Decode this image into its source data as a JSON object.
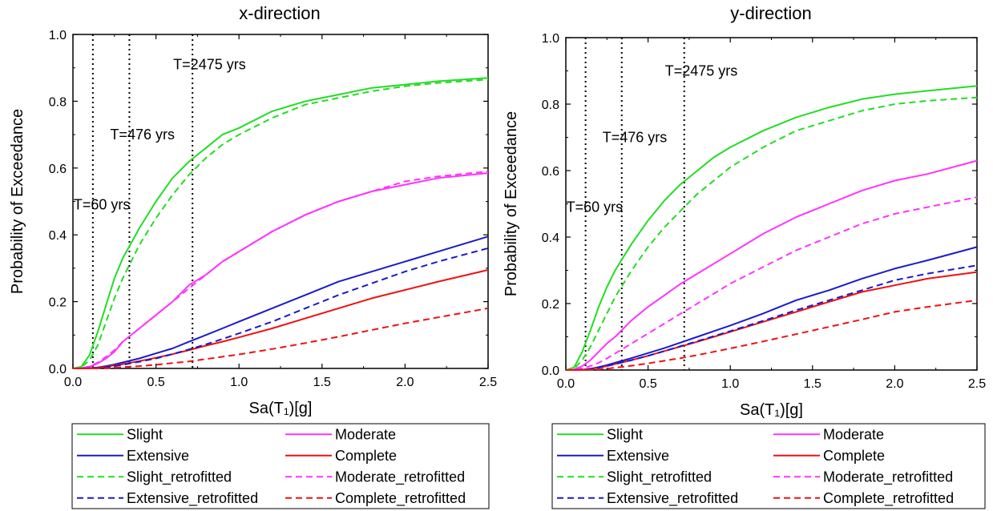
{
  "chart_data": [
    {
      "type": "line",
      "title": "x-direction",
      "xlabel": "Sa(T₁)[g]",
      "ylabel": "Probability of Exceedance",
      "xlim": [
        0,
        2.5
      ],
      "ylim": [
        0,
        1.0
      ],
      "xticks": [
        "0.0",
        "0.5",
        "1.0",
        "1.5",
        "2.0",
        "2.5"
      ],
      "yticks": [
        "0.0",
        "0.2",
        "0.4",
        "0.6",
        "0.8",
        "1.0"
      ],
      "x": [
        0,
        0.05,
        0.1,
        0.15,
        0.2,
        0.25,
        0.3,
        0.4,
        0.5,
        0.6,
        0.7,
        0.8,
        0.9,
        1.0,
        1.2,
        1.4,
        1.6,
        1.8,
        2.0,
        2.2,
        2.5
      ],
      "annotations": [
        {
          "x": 0.12,
          "label": "T=60 yrs",
          "label_y": 0.49
        },
        {
          "x": 0.34,
          "label": "T=476 yrs",
          "label_y": 0.7
        },
        {
          "x": 0.72,
          "label": "T=2475 yrs",
          "label_y": 0.91
        }
      ],
      "series": [
        {
          "name": "Slight",
          "color": "#22dd22",
          "dash": false,
          "values": [
            0,
            0.005,
            0.04,
            0.11,
            0.19,
            0.27,
            0.33,
            0.42,
            0.5,
            0.57,
            0.62,
            0.66,
            0.7,
            0.72,
            0.77,
            0.8,
            0.82,
            0.84,
            0.85,
            0.86,
            0.87
          ]
        },
        {
          "name": "Moderate",
          "color": "#ff33ff",
          "dash": false,
          "values": [
            0,
            0.001,
            0.005,
            0.015,
            0.03,
            0.05,
            0.08,
            0.12,
            0.16,
            0.2,
            0.25,
            0.28,
            0.32,
            0.35,
            0.41,
            0.46,
            0.5,
            0.53,
            0.55,
            0.57,
            0.585
          ]
        },
        {
          "name": "Extensive",
          "color": "#1a1acc",
          "dash": false,
          "values": [
            0,
            0,
            0.001,
            0.003,
            0.007,
            0.012,
            0.018,
            0.03,
            0.045,
            0.06,
            0.08,
            0.1,
            0.12,
            0.14,
            0.18,
            0.22,
            0.26,
            0.29,
            0.32,
            0.35,
            0.395
          ]
        },
        {
          "name": "Complete",
          "color": "#ee1111",
          "dash": false,
          "values": [
            0,
            0,
            0.0005,
            0.002,
            0.005,
            0.009,
            0.013,
            0.022,
            0.032,
            0.043,
            0.055,
            0.068,
            0.08,
            0.093,
            0.12,
            0.15,
            0.18,
            0.21,
            0.235,
            0.26,
            0.295
          ]
        },
        {
          "name": "Slight_retrofitted",
          "color": "#22dd22",
          "dash": true,
          "values": [
            0,
            0.003,
            0.025,
            0.07,
            0.14,
            0.21,
            0.27,
            0.37,
            0.45,
            0.52,
            0.58,
            0.63,
            0.67,
            0.7,
            0.75,
            0.79,
            0.81,
            0.83,
            0.845,
            0.855,
            0.865
          ]
        },
        {
          "name": "Moderate_retrofitted",
          "color": "#ff33ff",
          "dash": true,
          "values": [
            0,
            0.001,
            0.006,
            0.018,
            0.035,
            0.055,
            0.08,
            0.12,
            0.16,
            0.2,
            0.24,
            0.28,
            0.32,
            0.35,
            0.41,
            0.46,
            0.5,
            0.53,
            0.56,
            0.575,
            0.59
          ]
        },
        {
          "name": "Extensive_retrofitted",
          "color": "#1a1acc",
          "dash": true,
          "values": [
            0,
            0,
            0.001,
            0.002,
            0.004,
            0.007,
            0.011,
            0.02,
            0.03,
            0.043,
            0.057,
            0.072,
            0.088,
            0.105,
            0.14,
            0.18,
            0.22,
            0.255,
            0.29,
            0.32,
            0.36
          ]
        },
        {
          "name": "Complete_retrofitted",
          "color": "#ee1111",
          "dash": true,
          "values": [
            0,
            0,
            0,
            0.0005,
            0.001,
            0.002,
            0.004,
            0.007,
            0.011,
            0.016,
            0.021,
            0.028,
            0.035,
            0.042,
            0.058,
            0.076,
            0.095,
            0.115,
            0.135,
            0.153,
            0.18
          ]
        }
      ],
      "legend": {
        "placement": "bottom",
        "columns": 2
      }
    },
    {
      "type": "line",
      "title": "y-direction",
      "xlabel": "Sa(T₁)[g]",
      "ylabel": "Probability of Exceedance",
      "xlim": [
        0,
        2.5
      ],
      "ylim": [
        0,
        1.0
      ],
      "xticks": [
        "0.0",
        "0.5",
        "1.0",
        "1.5",
        "2.0",
        "2.5"
      ],
      "yticks": [
        "0.0",
        "0.2",
        "0.4",
        "0.6",
        "0.8",
        "1.0"
      ],
      "x": [
        0,
        0.05,
        0.1,
        0.15,
        0.2,
        0.25,
        0.3,
        0.4,
        0.5,
        0.6,
        0.7,
        0.8,
        0.9,
        1.0,
        1.2,
        1.4,
        1.6,
        1.8,
        2.0,
        2.2,
        2.5
      ],
      "annotations": [
        {
          "x": 0.12,
          "label": "T=60 yrs",
          "label_y": 0.49
        },
        {
          "x": 0.34,
          "label": "T=476 yrs",
          "label_y": 0.7
        },
        {
          "x": 0.72,
          "label": "T=2475 yrs",
          "label_y": 0.9
        }
      ],
      "series": [
        {
          "name": "Slight",
          "color": "#22dd22",
          "dash": false,
          "values": [
            0,
            0.008,
            0.055,
            0.12,
            0.19,
            0.25,
            0.3,
            0.38,
            0.45,
            0.51,
            0.56,
            0.6,
            0.64,
            0.67,
            0.72,
            0.76,
            0.79,
            0.815,
            0.83,
            0.84,
            0.855
          ]
        },
        {
          "name": "Moderate",
          "color": "#ff33ff",
          "dash": false,
          "values": [
            0,
            0.002,
            0.012,
            0.03,
            0.055,
            0.08,
            0.1,
            0.15,
            0.19,
            0.225,
            0.26,
            0.29,
            0.32,
            0.35,
            0.41,
            0.46,
            0.5,
            0.54,
            0.57,
            0.59,
            0.63
          ]
        },
        {
          "name": "Extensive",
          "color": "#1a1acc",
          "dash": false,
          "values": [
            0,
            0,
            0.001,
            0.004,
            0.009,
            0.015,
            0.022,
            0.036,
            0.051,
            0.066,
            0.083,
            0.1,
            0.117,
            0.134,
            0.17,
            0.21,
            0.24,
            0.275,
            0.305,
            0.33,
            0.37
          ]
        },
        {
          "name": "Complete",
          "color": "#ee1111",
          "dash": false,
          "values": [
            0,
            0,
            0.001,
            0.003,
            0.007,
            0.012,
            0.018,
            0.03,
            0.043,
            0.057,
            0.071,
            0.085,
            0.1,
            0.115,
            0.145,
            0.175,
            0.205,
            0.235,
            0.255,
            0.275,
            0.295
          ]
        },
        {
          "name": "Slight_retrofitted",
          "color": "#22dd22",
          "dash": true,
          "values": [
            0,
            0.004,
            0.03,
            0.07,
            0.12,
            0.17,
            0.22,
            0.3,
            0.37,
            0.43,
            0.48,
            0.53,
            0.57,
            0.61,
            0.67,
            0.72,
            0.75,
            0.78,
            0.8,
            0.81,
            0.82
          ]
        },
        {
          "name": "Moderate_retrofitted",
          "color": "#ff33ff",
          "dash": true,
          "values": [
            0,
            0.001,
            0.005,
            0.012,
            0.022,
            0.035,
            0.05,
            0.08,
            0.11,
            0.14,
            0.17,
            0.2,
            0.23,
            0.26,
            0.31,
            0.36,
            0.4,
            0.44,
            0.47,
            0.49,
            0.52
          ]
        },
        {
          "name": "Extensive_retrofitted",
          "color": "#1a1acc",
          "dash": true,
          "values": [
            0,
            0,
            0.001,
            0.003,
            0.007,
            0.012,
            0.018,
            0.03,
            0.043,
            0.057,
            0.072,
            0.087,
            0.102,
            0.117,
            0.148,
            0.18,
            0.21,
            0.24,
            0.27,
            0.29,
            0.315
          ]
        },
        {
          "name": "Complete_retrofitted",
          "color": "#ee1111",
          "dash": true,
          "values": [
            0,
            0,
            0,
            0.001,
            0.002,
            0.004,
            0.007,
            0.013,
            0.02,
            0.028,
            0.036,
            0.045,
            0.055,
            0.065,
            0.086,
            0.108,
            0.13,
            0.152,
            0.175,
            0.19,
            0.21
          ]
        }
      ],
      "legend": {
        "placement": "bottom",
        "columns": 2
      }
    }
  ]
}
